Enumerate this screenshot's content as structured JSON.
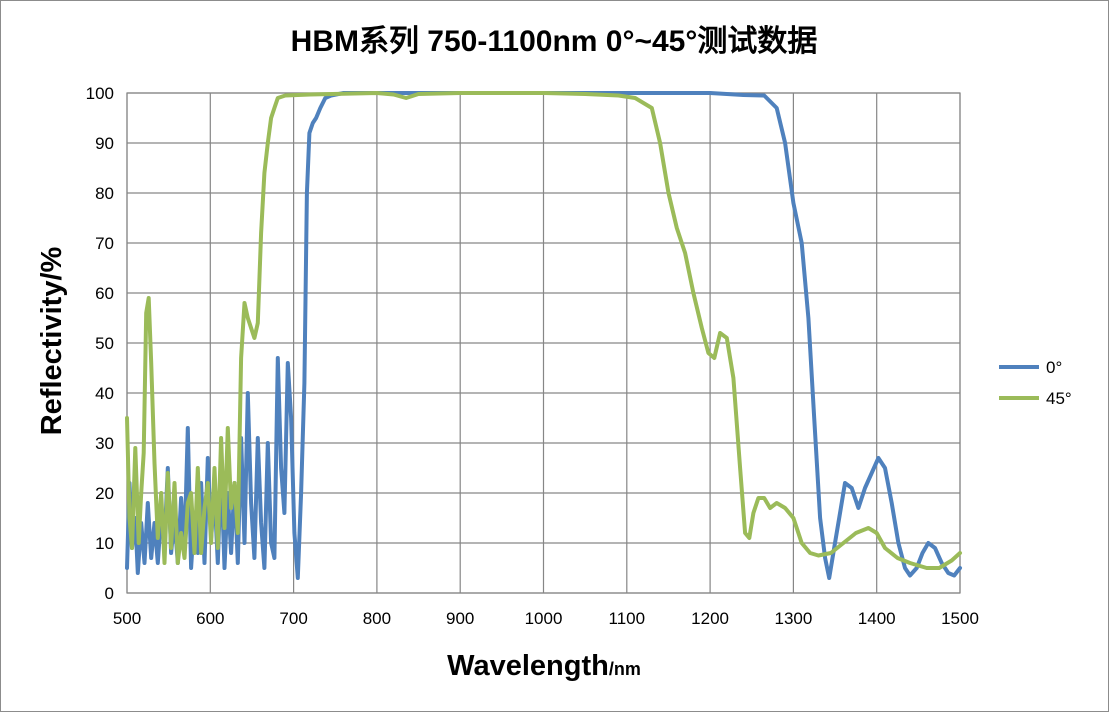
{
  "chart_data": {
    "type": "line",
    "title": "HBM系列 750-1100nm  0°~45°测试数据",
    "xlabel": "Wavelength",
    "xlabel_unit": "/nm",
    "ylabel": "Reflectivity/%",
    "xlim": [
      500,
      1500
    ],
    "ylim": [
      0,
      100
    ],
    "x_ticks": [
      500,
      600,
      700,
      800,
      900,
      1000,
      1100,
      1200,
      1300,
      1400,
      1500
    ],
    "y_ticks": [
      0,
      10,
      20,
      30,
      40,
      50,
      60,
      70,
      80,
      90,
      100
    ],
    "grid": true,
    "legend_position": "right",
    "series": [
      {
        "name": "0°",
        "color": "#4f81bd",
        "points": [
          [
            500,
            5
          ],
          [
            503,
            22
          ],
          [
            506,
            9
          ],
          [
            510,
            15
          ],
          [
            513,
            4
          ],
          [
            517,
            14
          ],
          [
            521,
            6
          ],
          [
            525,
            18
          ],
          [
            529,
            7
          ],
          [
            533,
            14
          ],
          [
            537,
            6
          ],
          [
            541,
            16
          ],
          [
            545,
            10
          ],
          [
            549,
            25
          ],
          [
            553,
            8
          ],
          [
            557,
            15
          ],
          [
            561,
            6
          ],
          [
            565,
            19
          ],
          [
            569,
            9
          ],
          [
            573,
            33
          ],
          [
            577,
            5
          ],
          [
            581,
            16
          ],
          [
            585,
            8
          ],
          [
            589,
            22
          ],
          [
            593,
            6
          ],
          [
            597,
            27
          ],
          [
            601,
            11
          ],
          [
            605,
            20
          ],
          [
            609,
            6
          ],
          [
            613,
            25
          ],
          [
            617,
            5
          ],
          [
            621,
            20
          ],
          [
            625,
            8
          ],
          [
            629,
            22
          ],
          [
            633,
            6
          ],
          [
            637,
            31
          ],
          [
            641,
            10
          ],
          [
            645,
            40
          ],
          [
            649,
            18
          ],
          [
            653,
            7
          ],
          [
            657,
            31
          ],
          [
            661,
            14
          ],
          [
            665,
            5
          ],
          [
            669,
            30
          ],
          [
            673,
            10
          ],
          [
            677,
            7
          ],
          [
            681,
            47
          ],
          [
            685,
            25
          ],
          [
            689,
            16
          ],
          [
            693,
            46
          ],
          [
            697,
            35
          ],
          [
            701,
            12
          ],
          [
            705,
            3
          ],
          [
            709,
            20
          ],
          [
            713,
            42
          ],
          [
            716,
            80
          ],
          [
            719,
            92
          ],
          [
            723,
            94
          ],
          [
            727,
            95
          ],
          [
            732,
            97
          ],
          [
            738,
            99
          ],
          [
            745,
            99.5
          ],
          [
            760,
            100
          ],
          [
            800,
            100
          ],
          [
            850,
            100
          ],
          [
            900,
            100
          ],
          [
            950,
            100
          ],
          [
            1000,
            100
          ],
          [
            1050,
            100
          ],
          [
            1100,
            100
          ],
          [
            1150,
            100
          ],
          [
            1200,
            100
          ],
          [
            1240,
            99.6
          ],
          [
            1265,
            99.5
          ],
          [
            1280,
            97
          ],
          [
            1290,
            90
          ],
          [
            1300,
            78
          ],
          [
            1310,
            70
          ],
          [
            1318,
            55
          ],
          [
            1325,
            35
          ],
          [
            1332,
            15
          ],
          [
            1338,
            7
          ],
          [
            1343,
            3
          ],
          [
            1350,
            10
          ],
          [
            1355,
            15
          ],
          [
            1362,
            22
          ],
          [
            1370,
            21
          ],
          [
            1378,
            17
          ],
          [
            1386,
            21
          ],
          [
            1394,
            24
          ],
          [
            1402,
            27
          ],
          [
            1410,
            25
          ],
          [
            1418,
            18
          ],
          [
            1426,
            10
          ],
          [
            1434,
            5
          ],
          [
            1440,
            3.5
          ],
          [
            1448,
            5
          ],
          [
            1455,
            8
          ],
          [
            1462,
            10
          ],
          [
            1470,
            9
          ],
          [
            1478,
            6
          ],
          [
            1486,
            4
          ],
          [
            1493,
            3.5
          ],
          [
            1500,
            5
          ]
        ]
      },
      {
        "name": "45°",
        "color": "#9bbb59",
        "points": [
          [
            500,
            35
          ],
          [
            503,
            15
          ],
          [
            506,
            9
          ],
          [
            510,
            29
          ],
          [
            514,
            10
          ],
          [
            517,
            20
          ],
          [
            520,
            28
          ],
          [
            523,
            56
          ],
          [
            526,
            59
          ],
          [
            529,
            46
          ],
          [
            533,
            26
          ],
          [
            537,
            11
          ],
          [
            541,
            20
          ],
          [
            545,
            6
          ],
          [
            549,
            24
          ],
          [
            553,
            9
          ],
          [
            557,
            22
          ],
          [
            561,
            6
          ],
          [
            565,
            12
          ],
          [
            569,
            7
          ],
          [
            573,
            18
          ],
          [
            577,
            20
          ],
          [
            581,
            8
          ],
          [
            585,
            25
          ],
          [
            589,
            8
          ],
          [
            593,
            17
          ],
          [
            597,
            22
          ],
          [
            601,
            10
          ],
          [
            605,
            25
          ],
          [
            609,
            9
          ],
          [
            613,
            31
          ],
          [
            617,
            13
          ],
          [
            621,
            33
          ],
          [
            625,
            17
          ],
          [
            629,
            22
          ],
          [
            633,
            12
          ],
          [
            637,
            47
          ],
          [
            641,
            58
          ],
          [
            645,
            55
          ],
          [
            649,
            53
          ],
          [
            653,
            51
          ],
          [
            657,
            54
          ],
          [
            661,
            72
          ],
          [
            665,
            84
          ],
          [
            669,
            90
          ],
          [
            673,
            95
          ],
          [
            677,
            97
          ],
          [
            681,
            99
          ],
          [
            690,
            99.5
          ],
          [
            720,
            99.7
          ],
          [
            800,
            100
          ],
          [
            820,
            99.7
          ],
          [
            835,
            99
          ],
          [
            850,
            99.8
          ],
          [
            900,
            100
          ],
          [
            1000,
            100
          ],
          [
            1050,
            99.8
          ],
          [
            1090,
            99.5
          ],
          [
            1110,
            99
          ],
          [
            1130,
            97
          ],
          [
            1140,
            90
          ],
          [
            1150,
            80
          ],
          [
            1160,
            73
          ],
          [
            1170,
            68
          ],
          [
            1180,
            60
          ],
          [
            1190,
            53
          ],
          [
            1198,
            48
          ],
          [
            1205,
            47
          ],
          [
            1212,
            52
          ],
          [
            1220,
            51
          ],
          [
            1228,
            43
          ],
          [
            1236,
            25
          ],
          [
            1242,
            12
          ],
          [
            1247,
            11
          ],
          [
            1252,
            16
          ],
          [
            1258,
            19
          ],
          [
            1265,
            19
          ],
          [
            1272,
            17
          ],
          [
            1280,
            18
          ],
          [
            1290,
            17
          ],
          [
            1300,
            15
          ],
          [
            1310,
            10
          ],
          [
            1320,
            8
          ],
          [
            1330,
            7.5
          ],
          [
            1345,
            8
          ],
          [
            1360,
            10
          ],
          [
            1375,
            12
          ],
          [
            1390,
            13
          ],
          [
            1400,
            12
          ],
          [
            1410,
            9
          ],
          [
            1425,
            7
          ],
          [
            1440,
            6
          ],
          [
            1460,
            5
          ],
          [
            1475,
            5
          ],
          [
            1490,
            6.5
          ],
          [
            1500,
            8
          ]
        ]
      }
    ]
  }
}
